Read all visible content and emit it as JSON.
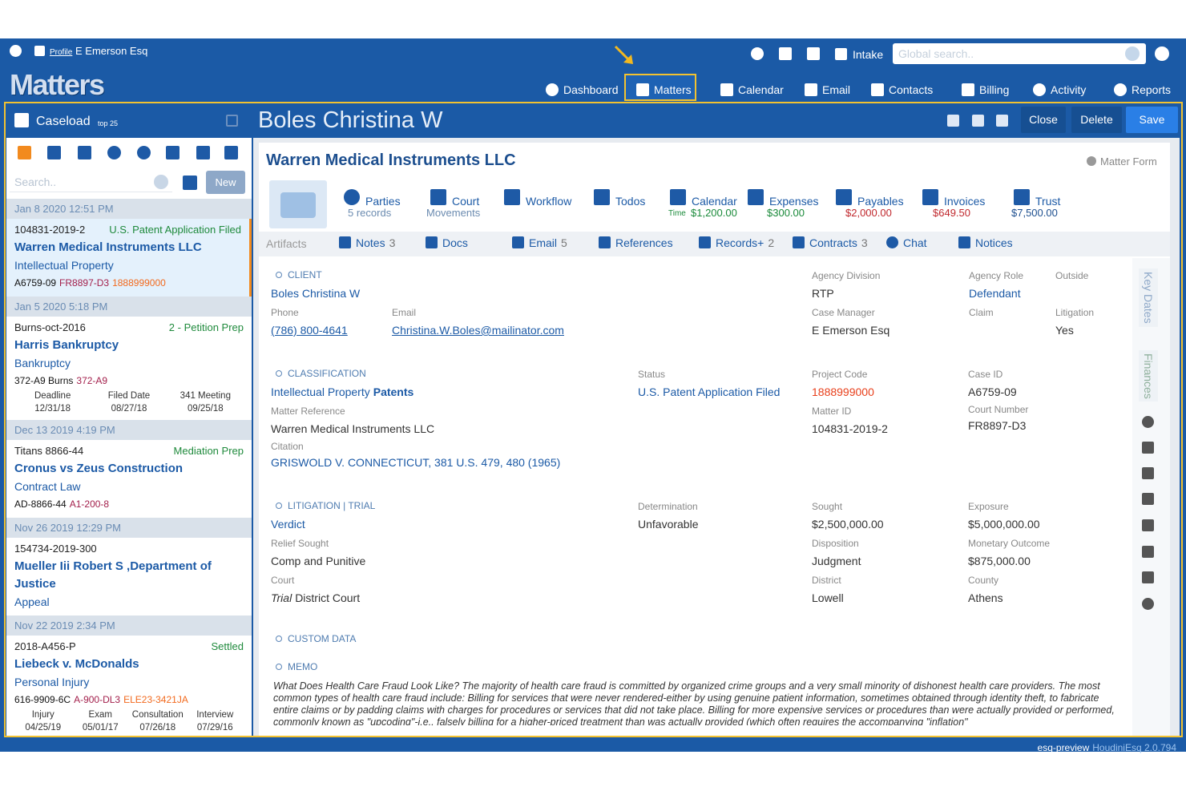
{
  "topbar": {
    "profile": "Profile",
    "user": "E Emerson Esq",
    "intake": "Intake",
    "search_placeholder": "Global search.."
  },
  "app_title": "Matters",
  "nav": [
    "Dashboard",
    "Matters",
    "Calendar",
    "Email",
    "Contacts",
    "Billing",
    "Activity",
    "Reports"
  ],
  "caseload": {
    "title": "Caseload",
    "badge": "top 25",
    "search_placeholder": "Search..",
    "new": "New",
    "cases": [
      {
        "date": "Jan 8 2020 12:51 PM",
        "number": "104831-2019-2",
        "status": "U.S. Patent Application Filed",
        "name": "Warren Medical Instruments LLC",
        "area": "Intellectual Property",
        "codes": [
          "A6759-09",
          "FR8897-D3",
          "1888999000"
        ]
      },
      {
        "date": "Jan 5 2020 5:18 PM",
        "number": "Burns-oct-2016",
        "status": "2 - Petition Prep",
        "name": "Harris Bankruptcy",
        "area": "Bankruptcy",
        "codes": [
          "372-A9 Burns",
          "372-A9"
        ],
        "dates": [
          {
            "label": "Deadline",
            "value": "12/31/18"
          },
          {
            "label": "Filed Date",
            "value": "08/27/18"
          },
          {
            "label": "341 Meeting",
            "value": "09/25/18"
          }
        ]
      },
      {
        "date": "Dec 13 2019 4:19 PM",
        "number": "Titans 8866-44",
        "status": "Mediation Prep",
        "name": "Cronus vs Zeus Construction",
        "area": "Contract Law",
        "codes": [
          "AD-8866-44",
          "A1-200-8"
        ]
      },
      {
        "date": "Nov 26 2019 12:29 PM",
        "number": "154734-2019-300",
        "name": "Mueller Iii Robert S ,Department of Justice",
        "area": "Appeal"
      },
      {
        "date": "Nov 22 2019 2:34 PM",
        "number": "2018-A456-P",
        "status": "Settled",
        "name": "Liebeck v. McDonalds",
        "area": "Personal Injury",
        "codes": [
          "616-9909-6C",
          "A-900-DL3",
          "ELE23-3421JA"
        ],
        "dates": [
          {
            "label": "Injury",
            "value": "04/25/19"
          },
          {
            "label": "Exam",
            "value": "05/01/17"
          },
          {
            "label": "Consultation",
            "value": "07/26/18"
          },
          {
            "label": "Interview",
            "value": "07/29/16"
          }
        ]
      }
    ]
  },
  "matter": {
    "title": "Boles Christina W",
    "actions": [
      "Close",
      "Delete",
      "Save"
    ],
    "heading": "Warren Medical Instruments LLC",
    "form_label": "Matter Form",
    "tiles": [
      {
        "label": "Parties",
        "sub": "5 records"
      },
      {
        "label": "Court",
        "sub": "Movements"
      },
      {
        "label": "Workflow"
      },
      {
        "label": "Todos"
      },
      {
        "label": "Calendar",
        "sub_prefix": "Time",
        "sub": "$1,200.00"
      },
      {
        "label": "Expenses",
        "sub": "$300.00"
      },
      {
        "label": "Payables",
        "sub": "$2,000.00"
      },
      {
        "label": "Invoices",
        "sub": "$649.50"
      },
      {
        "label": "Trust",
        "sub": "$7,500.00"
      }
    ],
    "artifacts": {
      "label": "Artifacts",
      "items": [
        {
          "label": "Notes",
          "count": 3
        },
        {
          "label": "Docs"
        },
        {
          "label": "Email",
          "count": 5
        },
        {
          "label": "References"
        },
        {
          "label": "Records+",
          "count": 2
        },
        {
          "label": "Contracts",
          "count": 3
        },
        {
          "label": "Chat"
        },
        {
          "label": "Notices"
        }
      ]
    },
    "sections": [
      {
        "heading": "CLIENT",
        "fields": [
          {
            "value": "Boles Christina W"
          },
          {
            "label": "Phone",
            "value": "(786) 800-4641"
          },
          {
            "label": "Email",
            "value": "Christina.W.Boles@mailinator.com"
          },
          {
            "label": "Agency Division",
            "value": "RTP"
          },
          {
            "label": "Case Manager",
            "value": "E Emerson Esq"
          },
          {
            "label": "Agency Role",
            "value": "Defendant"
          },
          {
            "label": "Claim"
          },
          {
            "label": "Outside"
          },
          {
            "label": "Litigation",
            "value": "Yes"
          }
        ]
      },
      {
        "heading": "CLASSIFICATION",
        "fields": [
          {
            "value": "Intellectual Property",
            "value_bold": "Patents"
          },
          {
            "label": "Status",
            "value": "U.S. Patent Application Filed"
          },
          {
            "label": "Project Code",
            "value": "1888999000"
          },
          {
            "label": "Case ID",
            "value": "A6759-09"
          },
          {
            "label": "Matter Reference",
            "value": "Warren Medical Instruments LLC"
          },
          {
            "label": "Matter ID",
            "value": "104831-2019-2"
          },
          {
            "label": "Court Number",
            "value": "FR8897-D3"
          },
          {
            "label": "Citation",
            "value": "GRISWOLD V. CONNECTICUT, 381 U.S. 479, 480 (1965)"
          }
        ]
      },
      {
        "heading": "LITIGATION | TRIAL",
        "fields": [
          {
            "value": "Verdict"
          },
          {
            "label": "Determination",
            "value": "Unfavorable"
          },
          {
            "label": "Sought",
            "value": "$2,500,000.00"
          },
          {
            "label": "Exposure",
            "value": "$5,000,000.00"
          },
          {
            "label": "Relief Sought",
            "value": "Comp and Punitive"
          },
          {
            "label": "Disposition",
            "value": "Judgment"
          },
          {
            "label": "Monetary Outcome",
            "value": "$875,000.00"
          },
          {
            "label": "Court",
            "value_italic": "Trial",
            "value": "District Court"
          },
          {
            "label": "District",
            "value": "Lowell"
          },
          {
            "label": "County",
            "value": "Athens"
          }
        ]
      },
      {
        "heading": "CUSTOM DATA",
        "fields": []
      },
      {
        "heading": "MEMO",
        "text": "What Does Health Care Fraud Look Like? The majority of health care fraud is committed by organized crime groups and a very small minority of dishonest health care providers. The most common types of health care fraud include: Billing for services that were never rendered-either by using genuine patient information, sometimes obtained through identity theft, to fabricate entire claims or by padding claims with charges for procedures or services that did not take place. Billing for more expensive services or procedures than were actually provided or performed, commonly known as \"upcoding\"-i.e., falsely billing for a higher-priced treatment than was actually provided (which often requires the accompanying \"inflation\""
      }
    ],
    "rail": [
      "Key Dates",
      "Finances"
    ]
  },
  "footer": {
    "env": "esq-preview",
    "version": "HoudiniEsq 2.0.794"
  }
}
